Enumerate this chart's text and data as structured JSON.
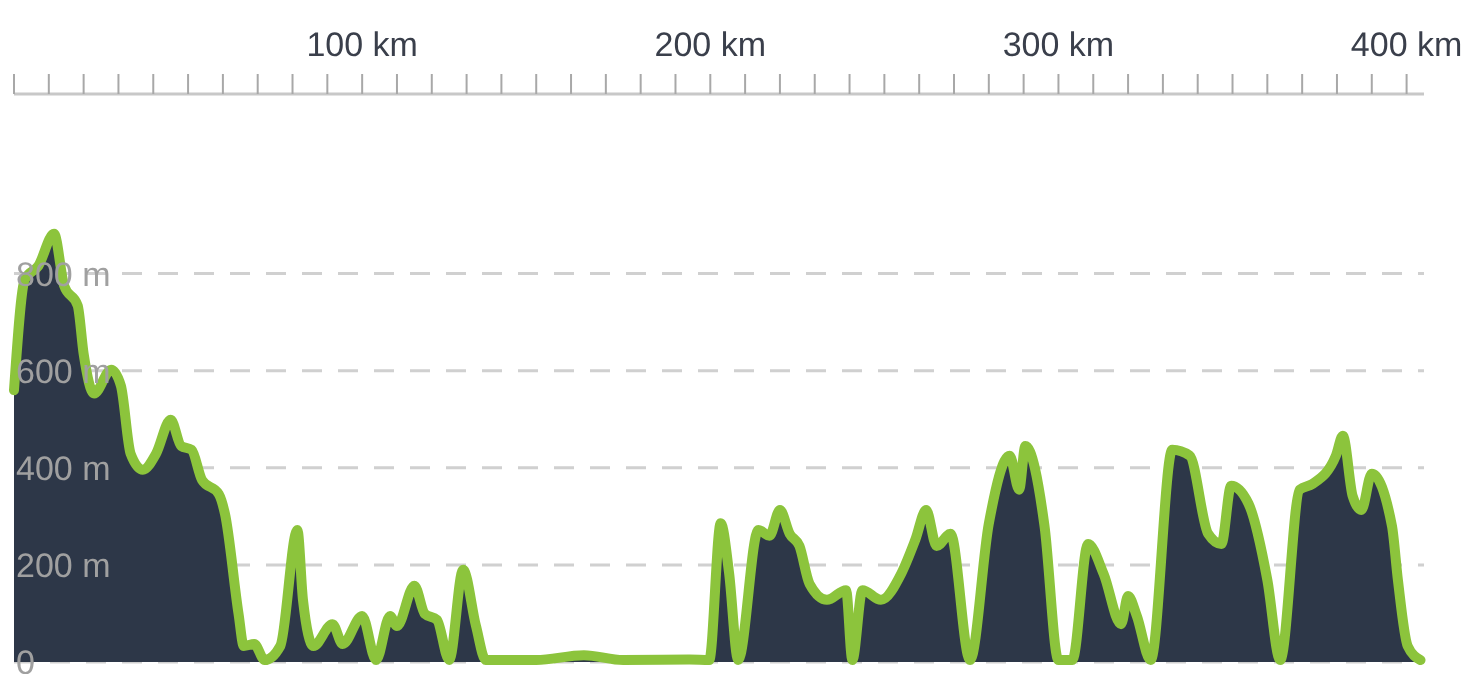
{
  "chart_data": {
    "type": "area",
    "x": [
      0,
      3.1,
      7,
      11.5,
      14.4,
      18.3,
      20,
      23,
      27.9,
      30.7,
      33.5,
      37,
      40.8,
      45,
      48,
      51,
      54,
      58.8,
      60.6,
      64.5,
      66,
      69,
      72,
      76.5,
      81.4,
      83,
      86,
      91.5,
      94.4,
      100,
      104,
      108,
      110,
      115,
      118,
      121.5,
      125,
      129,
      132.7,
      135.5,
      150,
      163.7,
      175,
      194,
      199.7,
      203,
      205.4,
      208,
      213.8,
      217,
      220,
      222.8,
      225.6,
      228.5,
      233.5,
      239,
      240.8,
      243.7,
      249,
      254.9,
      258.9,
      262,
      265,
      269,
      274.6,
      280,
      286,
      288.7,
      290.5,
      296,
      300,
      304,
      308.5,
      313,
      318,
      320,
      322.5,
      326.5,
      332.7,
      337.7,
      343,
      346.8,
      349.6,
      354.6,
      360,
      363.7,
      369.3,
      373,
      379.7,
      381.7,
      384.5,
      387,
      390,
      395.8,
      397.5,
      400.3,
      404
    ],
    "series": [
      {
        "color": "#2d3748",
        "values": [
          560,
          788,
          816,
          882,
          775,
          734,
          635,
          553,
          602,
          569,
          429,
          396,
          429,
          499,
          445,
          437,
          375,
          346,
          305,
          99,
          33,
          37,
          4,
          33,
          272,
          128,
          33,
          78,
          37,
          95,
          4,
          95,
          74,
          157,
          99,
          87,
          4,
          190,
          74,
          4,
          4,
          14,
          4,
          5,
          4,
          286,
          183,
          4,
          272,
          260,
          313,
          264,
          239,
          161,
          128,
          148,
          4,
          148,
          128,
          183,
          252,
          313,
          239,
          264,
          4,
          285,
          425,
          355,
          445,
          280,
          4,
          4,
          243,
          181,
          78,
          136,
          95,
          4,
          437,
          425,
          264,
          243,
          363,
          326,
          169,
          4,
          355,
          367,
          425,
          466,
          342,
          313,
          388,
          280,
          169,
          33,
          4
        ]
      }
    ],
    "xlim": [
      0,
      405
    ],
    "xticks": [
      {
        "value": 0,
        "label": null
      },
      {
        "value": 10,
        "label": null
      },
      {
        "value": 20,
        "label": null
      },
      {
        "value": 30,
        "label": null
      },
      {
        "value": 40,
        "label": null
      },
      {
        "value": 50,
        "label": null
      },
      {
        "value": 60,
        "label": null
      },
      {
        "value": 70,
        "label": null
      },
      {
        "value": 80,
        "label": null
      },
      {
        "value": 90,
        "label": null
      },
      {
        "value": 100,
        "label": "100 km"
      },
      {
        "value": 110,
        "label": null
      },
      {
        "value": 120,
        "label": null
      },
      {
        "value": 130,
        "label": null
      },
      {
        "value": 140,
        "label": null
      },
      {
        "value": 150,
        "label": null
      },
      {
        "value": 160,
        "label": null
      },
      {
        "value": 170,
        "label": null
      },
      {
        "value": 180,
        "label": null
      },
      {
        "value": 190,
        "label": null
      },
      {
        "value": 200,
        "label": "200 km"
      },
      {
        "value": 210,
        "label": null
      },
      {
        "value": 220,
        "label": null
      },
      {
        "value": 230,
        "label": null
      },
      {
        "value": 240,
        "label": null
      },
      {
        "value": 250,
        "label": null
      },
      {
        "value": 260,
        "label": null
      },
      {
        "value": 270,
        "label": null
      },
      {
        "value": 280,
        "label": null
      },
      {
        "value": 290,
        "label": null
      },
      {
        "value": 300,
        "label": "300 km"
      },
      {
        "value": 310,
        "label": null
      },
      {
        "value": 320,
        "label": null
      },
      {
        "value": 330,
        "label": null
      },
      {
        "value": 340,
        "label": null
      },
      {
        "value": 350,
        "label": null
      },
      {
        "value": 360,
        "label": null
      },
      {
        "value": 370,
        "label": null
      },
      {
        "value": 380,
        "label": null
      },
      {
        "value": 390,
        "label": null
      },
      {
        "value": 400,
        "label": "400 km"
      }
    ],
    "ylim": [
      0,
      1170
    ],
    "yticks": [
      {
        "value": 0,
        "label": "0"
      },
      {
        "value": 200,
        "label": "200 m"
      },
      {
        "value": 400,
        "label": "400 m"
      },
      {
        "value": 600,
        "label": "600 m"
      },
      {
        "value": 800,
        "label": "800 m"
      }
    ],
    "grid": "y",
    "marker": "none",
    "line_style": "solid"
  }
}
